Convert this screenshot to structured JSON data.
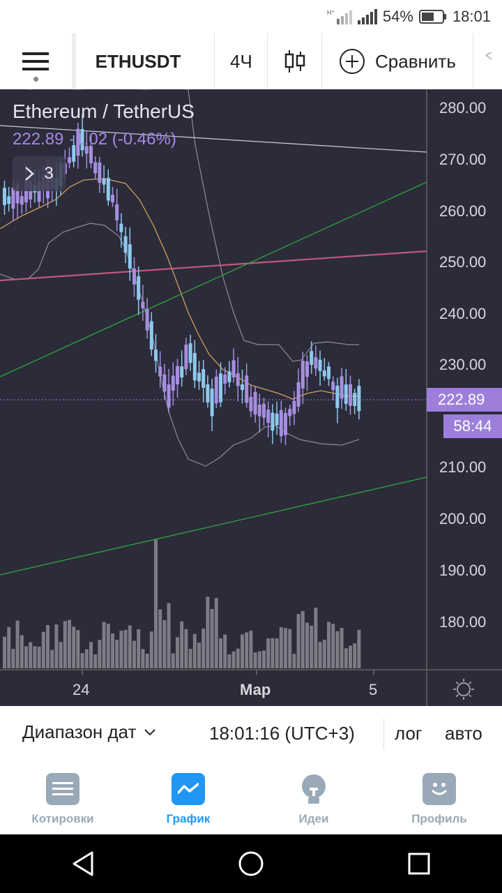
{
  "status_bar": {
    "battery": "54%",
    "time": "18:01"
  },
  "toolbar": {
    "symbol": "ETHUSDT",
    "interval": "4Ч",
    "compare_label": "Сравнить"
  },
  "legend": {
    "title": "Ethereum / TetherUS",
    "price": "222.89",
    "change": "-1.02 (-0.46%)",
    "indicators_count": "3"
  },
  "price_axis": {
    "ticks": [
      "280.00",
      "270.00",
      "260.00",
      "250.00",
      "240.00",
      "230.00",
      "210.00",
      "200.00",
      "190.00",
      "180.00"
    ],
    "current_price": "222.89",
    "countdown": "58:44"
  },
  "time_axis": {
    "labels": [
      "24",
      "Мар",
      "5"
    ]
  },
  "bottom_bar": {
    "date_range": "Диапазон дат",
    "clock": "18:01:16 (UTC+3)",
    "log": "лог",
    "auto": "авто"
  },
  "nav": {
    "items": [
      {
        "label": "Котировки",
        "active": false
      },
      {
        "label": "График",
        "active": true
      },
      {
        "label": "Идеи",
        "active": false
      },
      {
        "label": "Профиль",
        "active": false
      }
    ]
  },
  "colors": {
    "chart_bg": "#2b2b3a",
    "up_candle": "#8ec9ec",
    "down_candle": "#a78ee0",
    "accent_blue": "#2196f3",
    "trend_green": "#2ea83a",
    "trend_pink": "#c0587e",
    "ma_orange": "#d6a05a"
  }
}
